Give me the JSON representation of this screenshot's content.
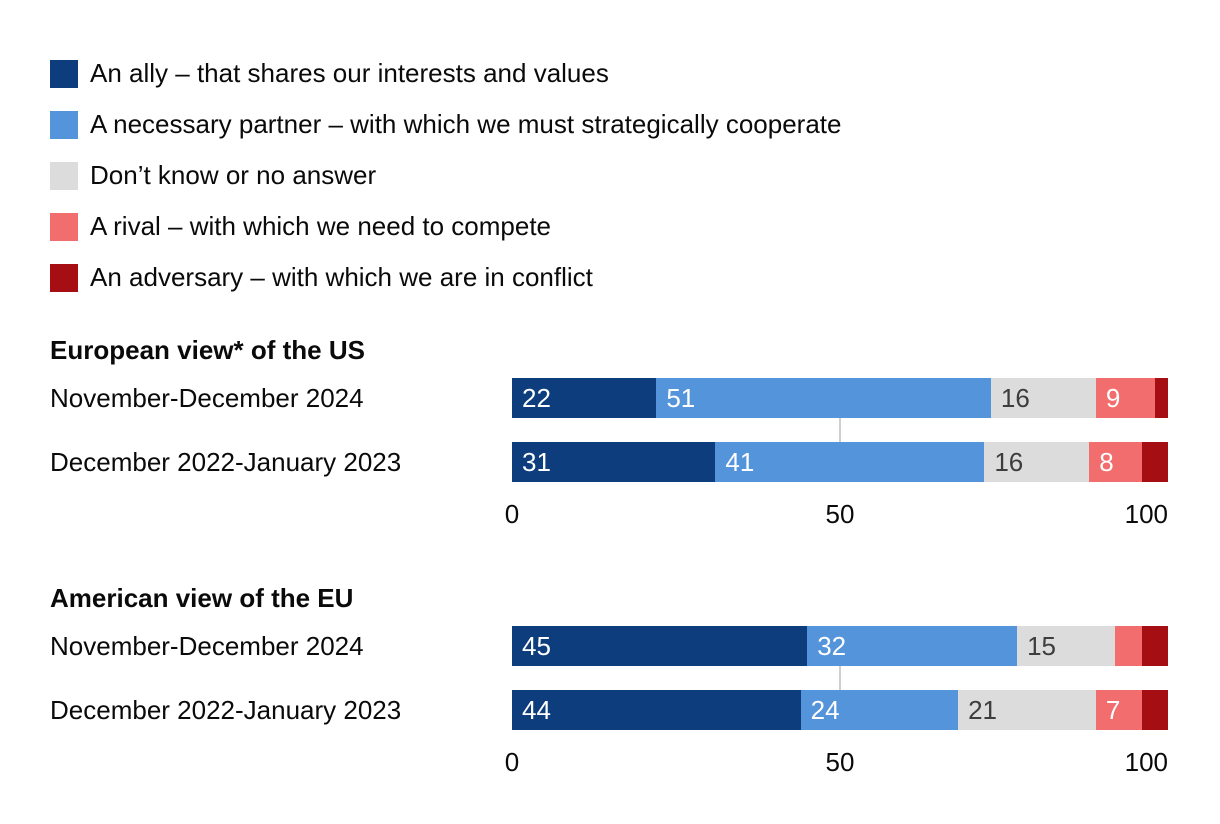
{
  "legend": {
    "items": [
      {
        "label": "An ally – that shares our interests and values",
        "color": "#0d3d7c"
      },
      {
        "label": "A necessary partner – with which we must strategically cooperate",
        "color": "#5494da"
      },
      {
        "label": "Don’t know or no answer",
        "color": "#dcdcdc"
      },
      {
        "label": "A rival – with which we need to compete",
        "color": "#f26d6e"
      },
      {
        "label": "An adversary – with which we are in conflict",
        "color": "#a50e13"
      }
    ]
  },
  "chart_data": [
    {
      "type": "bar",
      "stacked": true,
      "orientation": "horizontal",
      "title": "European view* of the US",
      "categories": [
        "November-December 2024",
        "December 2022-January 2023"
      ],
      "series": [
        {
          "name": "An ally – that shares our interests and values",
          "values": [
            22,
            31
          ],
          "labels": [
            "22",
            "31"
          ]
        },
        {
          "name": "A necessary partner – with which we must strategically cooperate",
          "values": [
            51,
            41
          ],
          "labels": [
            "51",
            "41"
          ]
        },
        {
          "name": "Don’t know or no answer",
          "values": [
            16,
            16
          ],
          "labels": [
            "16",
            "16"
          ]
        },
        {
          "name": "A rival – with which we need to compete",
          "values": [
            9,
            8
          ],
          "labels": [
            "9",
            "8"
          ]
        },
        {
          "name": "An adversary – with which we are in conflict",
          "values": [
            2,
            4
          ],
          "labels": [
            "",
            ""
          ]
        }
      ],
      "xlim": [
        0,
        100
      ],
      "xticks": [
        "0",
        "50",
        "100"
      ],
      "gridline_at": 50,
      "legend_position": "top"
    },
    {
      "type": "bar",
      "stacked": true,
      "orientation": "horizontal",
      "title": "American view of the EU",
      "categories": [
        "November-December 2024",
        "December 2022-January 2023"
      ],
      "series": [
        {
          "name": "An ally – that shares our interests and values",
          "values": [
            45,
            44
          ],
          "labels": [
            "45",
            "44"
          ]
        },
        {
          "name": "A necessary partner – with which we must strategically cooperate",
          "values": [
            32,
            24
          ],
          "labels": [
            "32",
            "24"
          ]
        },
        {
          "name": "Don’t know or no answer",
          "values": [
            15,
            21
          ],
          "labels": [
            "15",
            "21"
          ]
        },
        {
          "name": "A rival – with which we need to compete",
          "values": [
            4,
            7
          ],
          "labels": [
            "",
            "7"
          ]
        },
        {
          "name": "An adversary – with which we are in conflict",
          "values": [
            4,
            4
          ],
          "labels": [
            "",
            ""
          ]
        }
      ],
      "xlim": [
        0,
        100
      ],
      "xticks": [
        "0",
        "50",
        "100"
      ],
      "gridline_at": 50,
      "legend_position": "top"
    }
  ]
}
